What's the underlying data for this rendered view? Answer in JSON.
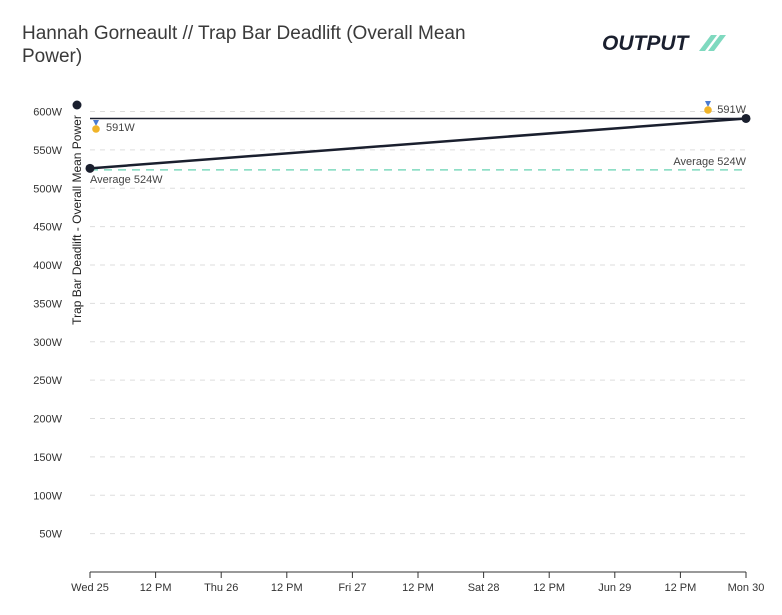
{
  "header": {
    "title": "Hannah Gorneault // Trap Bar Deadlift (Overall Mean Power)",
    "logo_text": "OUTPUT"
  },
  "colors": {
    "series_line": "#1a1f2e",
    "average_line": "#7fd9bf",
    "grid": "#dddddd",
    "medal": "#f0b429"
  },
  "icons": {
    "medal": "medal-icon"
  },
  "chart_data": {
    "type": "line",
    "ylabel": "Trap Bar Deadlift - Overall Mean Power",
    "xlabel": "",
    "ylim": [
      0,
      610
    ],
    "y_ticks": [
      {
        "value": 50,
        "label": "50W"
      },
      {
        "value": 100,
        "label": "100W"
      },
      {
        "value": 150,
        "label": "150W"
      },
      {
        "value": 200,
        "label": "200W"
      },
      {
        "value": 250,
        "label": "250W"
      },
      {
        "value": 300,
        "label": "300W"
      },
      {
        "value": 350,
        "label": "350W"
      },
      {
        "value": 400,
        "label": "400W"
      },
      {
        "value": 450,
        "label": "450W"
      },
      {
        "value": 500,
        "label": "500W"
      },
      {
        "value": 550,
        "label": "550W"
      },
      {
        "value": 600,
        "label": "600W"
      }
    ],
    "x_ticks": [
      "Wed 25",
      "12 PM",
      "Thu 26",
      "12 PM",
      "Fri 27",
      "12 PM",
      "Sat 28",
      "12 PM",
      "Jun 29",
      "12 PM",
      "Mon 30"
    ],
    "series": [
      {
        "points": [
          {
            "x": "Wed 25",
            "y": 526
          },
          {
            "x": "Mon 30",
            "y": 591
          }
        ]
      }
    ],
    "max_line": {
      "value": 591
    },
    "average_line": {
      "value": 524
    },
    "annotations": {
      "max_label": "591W",
      "average_label": "Average 524W"
    }
  }
}
